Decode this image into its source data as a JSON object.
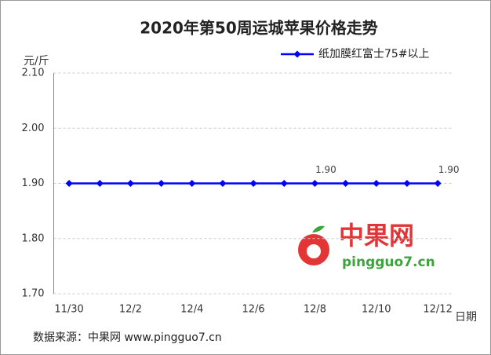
{
  "chart_data": {
    "type": "line",
    "title": "2020年第50周运城苹果价格走势",
    "y_label": "元/斤",
    "x_label": "日期",
    "categories": [
      "11/30",
      null,
      "12/2",
      null,
      "12/4",
      null,
      "12/6",
      null,
      "12/8",
      null,
      "12/10",
      null,
      "12/12"
    ],
    "series": [
      {
        "name": "纸加膜红富士75#以上",
        "color": "#0000ff",
        "values": [
          1.9,
          1.9,
          1.9,
          1.9,
          1.9,
          1.9,
          1.9,
          1.9,
          1.9,
          1.9,
          1.9,
          1.9,
          1.9
        ],
        "value_labels": [
          null,
          null,
          null,
          null,
          null,
          null,
          null,
          null,
          "1.90",
          null,
          null,
          null,
          "1.90"
        ]
      }
    ],
    "ylim": [
      1.7,
      2.1
    ],
    "yticks": [
      {
        "value": 1.7,
        "label": "1.70"
      },
      {
        "value": 1.8,
        "label": "1.80"
      },
      {
        "value": 1.9,
        "label": "1.90"
      },
      {
        "value": 2.0,
        "label": "2.00"
      },
      {
        "value": 2.1,
        "label": "2.10"
      }
    ],
    "grid": true,
    "legend": "top-right",
    "source": "数据来源：中果网 www.pingguo7.cn",
    "watermark": {
      "brand": "中果网",
      "site": "pingguo7.cn"
    }
  }
}
